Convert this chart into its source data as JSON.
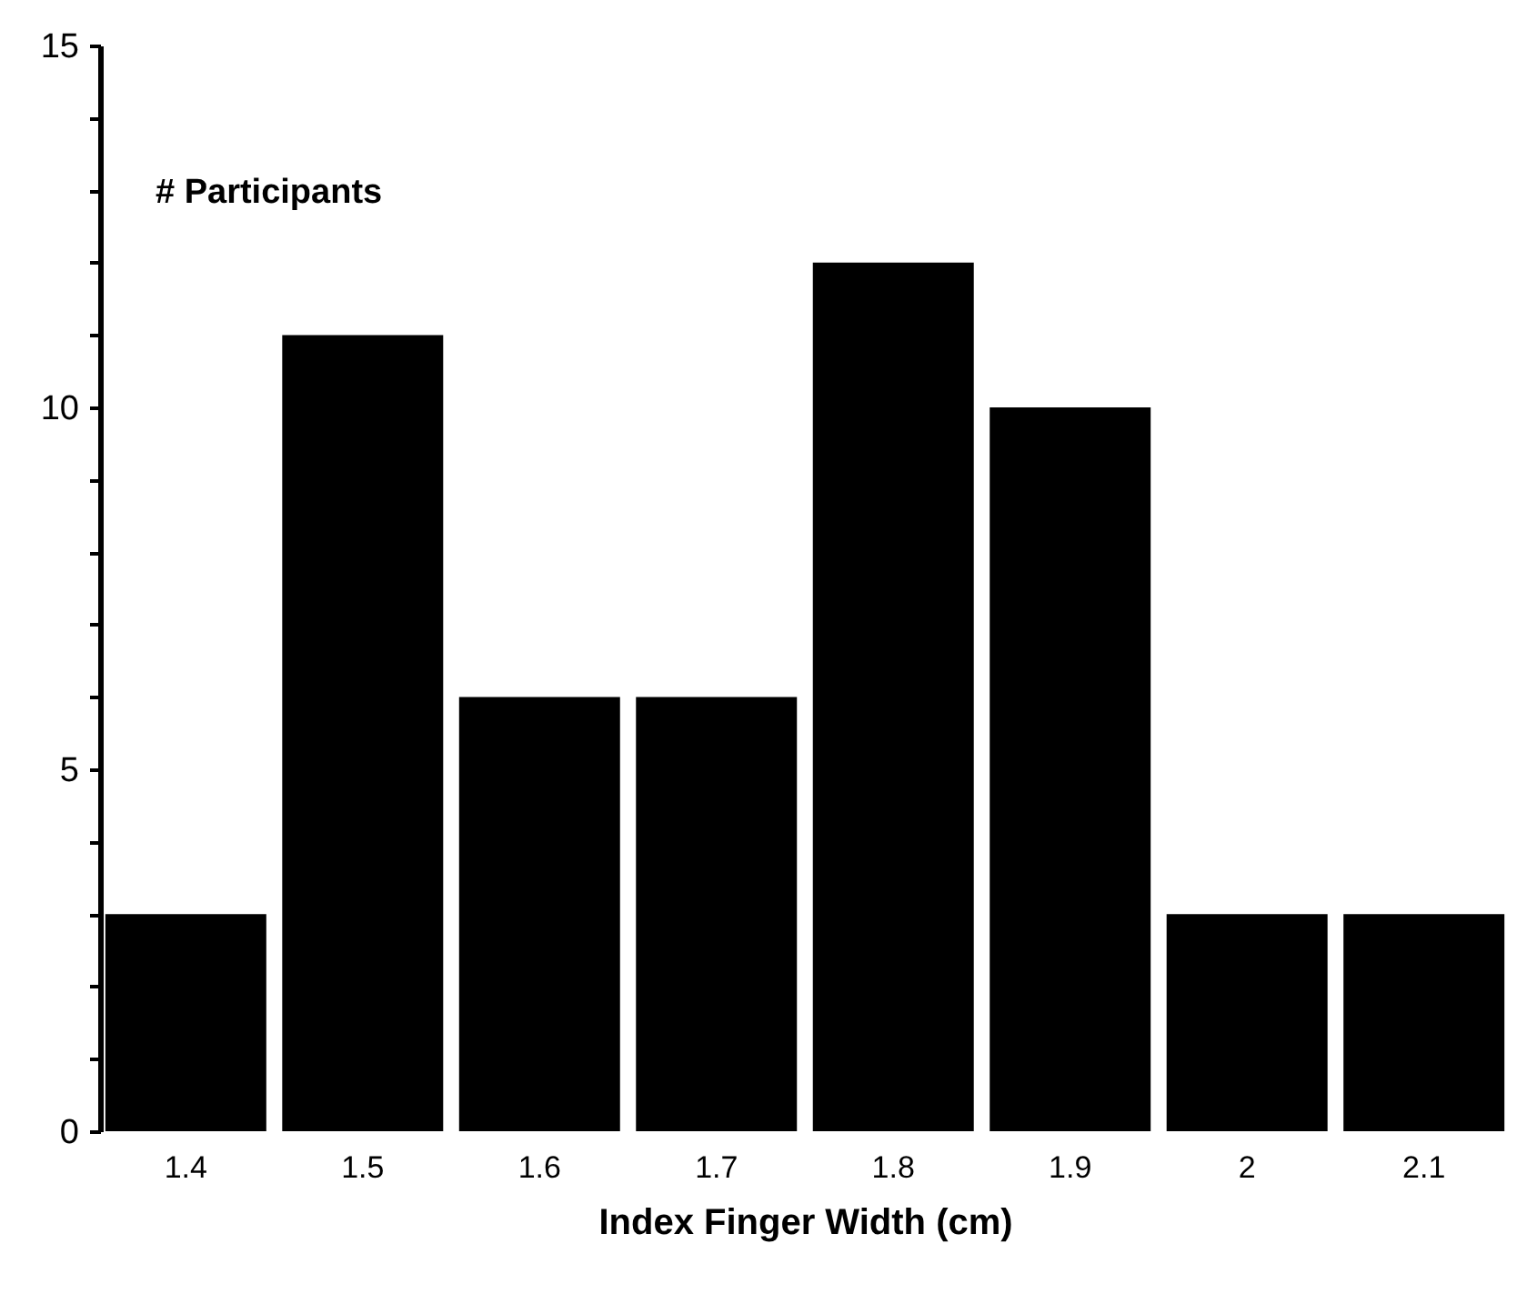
{
  "chart_data": {
    "type": "bar",
    "xlabel": "Index Finger Width (cm)",
    "ylabel": "# Participants",
    "categories": [
      "1.4",
      "1.5",
      "1.6",
      "1.7",
      "1.8",
      "1.9",
      "2",
      "2.1"
    ],
    "values": [
      3,
      11,
      6,
      6,
      12,
      10,
      3,
      3
    ],
    "color": "#000000",
    "ylim": [
      0,
      15
    ],
    "yticks": [
      0,
      {
        "value": 1,
        "label": null
      },
      {
        "value": 2,
        "label": null
      },
      {
        "value": 3,
        "label": null
      },
      {
        "value": 4,
        "label": null
      },
      5,
      {
        "value": 6,
        "label": null
      },
      {
        "value": 7,
        "label": null
      },
      {
        "value": 8,
        "label": null
      },
      {
        "value": 9,
        "label": null
      },
      10,
      {
        "value": 11,
        "label": null
      },
      {
        "value": 12,
        "label": null
      },
      {
        "value": 13,
        "label": null
      },
      {
        "value": 14,
        "label": null
      },
      15
    ],
    "grid": false
  }
}
